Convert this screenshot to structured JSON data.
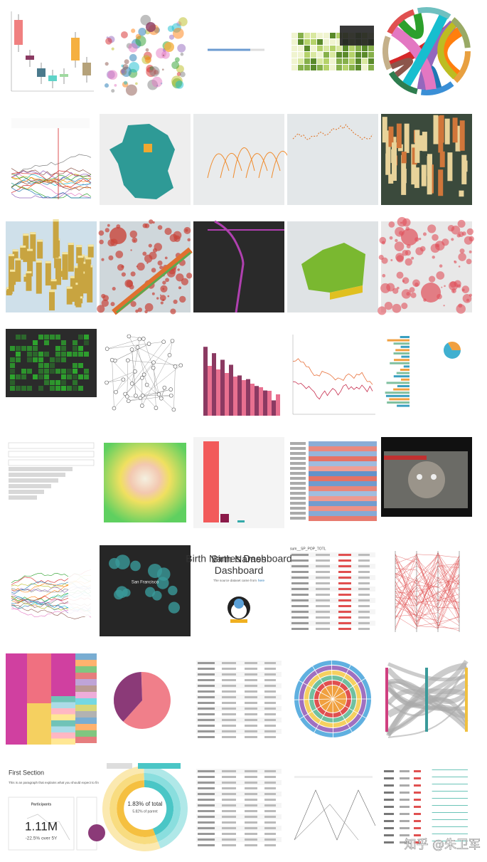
{
  "birth_names": {
    "title": "Birth Names Dashboard",
    "subtitle": "The source dataset came from",
    "link": "here"
  },
  "markdown": {
    "heading": "First Section",
    "paragraph": "This is an paragraph that explains what you should expect to fin",
    "card_title": "Participants",
    "big_number": "1.11M",
    "change": "-22.5% over 5Y"
  },
  "sunburst": {
    "total": "1.83% of total",
    "parent": "5.82% of parent"
  },
  "map_label": "San Francisco",
  "table_header": "sum__SP_POP_TOTL",
  "watermark": "知乎 @朱卫军"
}
